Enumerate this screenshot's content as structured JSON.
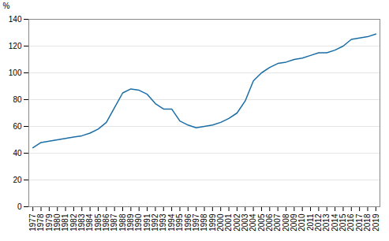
{
  "chart_data": {
    "type": "line",
    "x": [
      1977,
      1978,
      1979,
      1980,
      1981,
      1982,
      1983,
      1984,
      1985,
      1986,
      1987,
      1988,
      1989,
      1990,
      1991,
      1992,
      1993,
      1994,
      1995,
      1996,
      1997,
      1998,
      1999,
      2000,
      2001,
      2002,
      2003,
      2004,
      2005,
      2006,
      2007,
      2008,
      2009,
      2010,
      2011,
      2012,
      2013,
      2014,
      2015,
      2016,
      2017,
      2018,
      2019
    ],
    "values": [
      44,
      48,
      49,
      50,
      51,
      52,
      53,
      55,
      58,
      63,
      74,
      85,
      88,
      87,
      84,
      77,
      73,
      73,
      64,
      61,
      59,
      60,
      61,
      63,
      66,
      70,
      79,
      94,
      100,
      104,
      107,
      108,
      110,
      111,
      113,
      115,
      115,
      117,
      120,
      125,
      126,
      127,
      129
    ],
    "color": "#1a6ea6",
    "ylabel": "%",
    "xlim": [
      1976.5,
      2019.5
    ],
    "xticks": [
      1977,
      1978,
      1979,
      1980,
      1981,
      1982,
      1983,
      1984,
      1985,
      1986,
      1987,
      1988,
      1989,
      1990,
      1991,
      1992,
      1993,
      1994,
      1995,
      1996,
      1997,
      1998,
      1999,
      2000,
      2001,
      2002,
      2003,
      2004,
      2005,
      2006,
      2007,
      2008,
      2009,
      2010,
      2011,
      2012,
      2013,
      2014,
      2015,
      2016,
      2017,
      2018,
      2019
    ],
    "ylim": [
      0,
      140
    ],
    "yticks": [
      0,
      20,
      40,
      60,
      80,
      100,
      120,
      140
    ],
    "grid": true
  }
}
